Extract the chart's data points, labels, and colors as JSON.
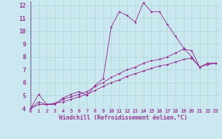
{
  "xlabel": "Windchill (Refroidissement éolien,°C)",
  "background_color": "#cbe8f0",
  "grid_color": "#a8d8cc",
  "line_color": "#993399",
  "xlim": [
    -0.5,
    23.5
  ],
  "ylim": [
    4,
    12.3
  ],
  "yticks": [
    4,
    5,
    6,
    7,
    8,
    9,
    10,
    11,
    12
  ],
  "xticks": [
    0,
    1,
    2,
    3,
    4,
    5,
    6,
    7,
    8,
    9,
    10,
    11,
    12,
    13,
    14,
    15,
    16,
    17,
    18,
    19,
    20,
    21,
    22,
    23
  ],
  "series": [
    [
      4.0,
      5.1,
      4.3,
      4.3,
      4.8,
      5.1,
      5.3,
      5.0,
      5.8,
      6.3,
      10.3,
      11.5,
      11.2,
      10.7,
      12.2,
      11.5,
      11.5,
      10.5,
      9.6,
      8.7,
      8.0,
      7.2,
      7.5,
      7.5
    ],
    [
      4.0,
      4.5,
      4.3,
      4.4,
      4.7,
      4.9,
      5.1,
      5.3,
      5.7,
      6.0,
      6.4,
      6.7,
      7.0,
      7.2,
      7.5,
      7.7,
      7.8,
      8.0,
      8.3,
      8.6,
      8.5,
      7.2,
      7.5,
      7.5
    ],
    [
      4.0,
      4.3,
      4.3,
      4.4,
      4.5,
      4.7,
      4.9,
      5.1,
      5.4,
      5.7,
      6.0,
      6.2,
      6.5,
      6.7,
      6.9,
      7.1,
      7.3,
      7.4,
      7.6,
      7.8,
      7.9,
      7.2,
      7.4,
      7.5
    ]
  ],
  "xlabel_fontsize": 6,
  "xlabel_color": "#993399",
  "tick_fontsize_x": 5,
  "tick_fontsize_y": 6
}
